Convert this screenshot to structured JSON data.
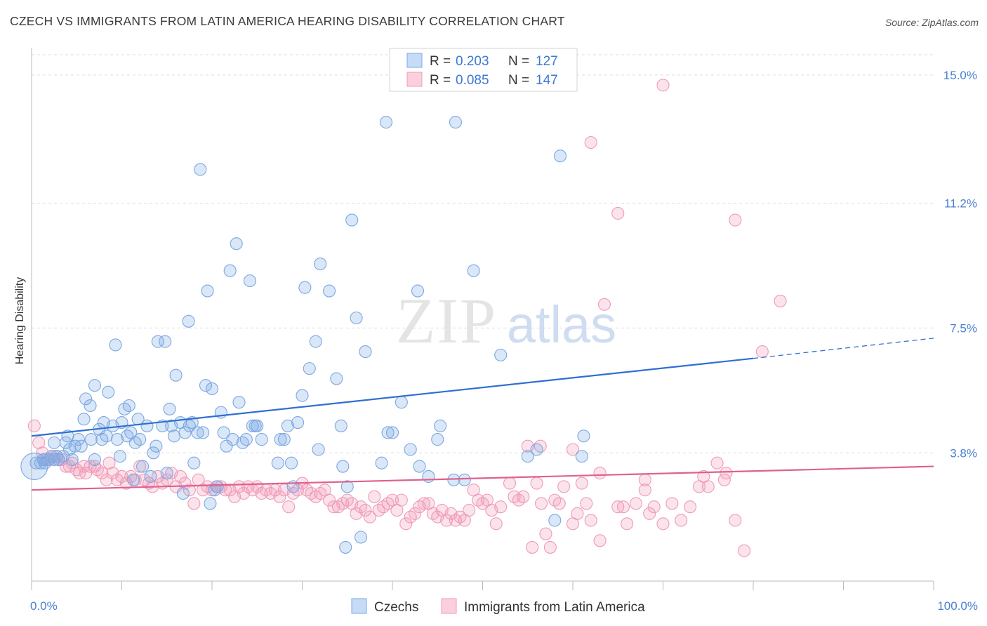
{
  "title": "CZECH VS IMMIGRANTS FROM LATIN AMERICA HEARING DISABILITY CORRELATION CHART",
  "source": "Source: ZipAtlas.com",
  "watermark": {
    "part1": "ZIP",
    "part2": "atlas"
  },
  "colors": {
    "blue": "#7aa8e4",
    "blue_line": "#2f6fd1",
    "pink": "#f09ab8",
    "pink_line": "#e0608e",
    "axis_text": "#4a7fd1"
  },
  "legend_top": [
    {
      "r_label": "R =",
      "r_value": "0.203",
      "n_label": "N =",
      "n_value": "127",
      "color": "blue"
    },
    {
      "r_label": "R =",
      "r_value": "0.085",
      "n_label": "N =",
      "n_value": "147",
      "color": "pink"
    }
  ],
  "legend_bottom": [
    {
      "label": "Czechs",
      "color": "blue"
    },
    {
      "label": "Immigrants from Latin America",
      "color": "pink"
    }
  ],
  "chart_data": {
    "type": "scatter",
    "ylabel": "Hearing Disability",
    "xlim": [
      0,
      100
    ],
    "ylim": [
      0,
      15.6
    ],
    "y_ticks": [
      3.8,
      7.5,
      11.2,
      15.0
    ],
    "y_tick_labels": [
      "3.8%",
      "7.5%",
      "11.2%",
      "15.0%"
    ],
    "x_tick_labels": [
      "0.0%",
      "100.0%"
    ],
    "grid": true,
    "series": [
      {
        "name": "Czechs",
        "color": "blue",
        "trend": {
          "x0": 0,
          "y0": 4.3,
          "x1": 80,
          "y1": 6.6,
          "dash_to_x": 100,
          "dash_to_y": 7.2
        },
        "points": [
          [
            0.5,
            3.5
          ],
          [
            1.0,
            3.5
          ],
          [
            1.3,
            3.6
          ],
          [
            1.5,
            3.5
          ],
          [
            1.8,
            3.6
          ],
          [
            2.2,
            3.7
          ],
          [
            2.5,
            3.6
          ],
          [
            2.8,
            3.7
          ],
          [
            3.0,
            3.6
          ],
          [
            2.5,
            4.1
          ],
          [
            3.5,
            3.7
          ],
          [
            3.8,
            4.1
          ],
          [
            4.0,
            4.3
          ],
          [
            4.2,
            3.9
          ],
          [
            4.5,
            3.6
          ],
          [
            4.8,
            4.0
          ],
          [
            5.2,
            4.2
          ],
          [
            5.5,
            4.0
          ],
          [
            5.8,
            4.8
          ],
          [
            6.0,
            5.4
          ],
          [
            6.5,
            5.2
          ],
          [
            6.6,
            4.2
          ],
          [
            7.0,
            3.6
          ],
          [
            7.0,
            5.8
          ],
          [
            7.5,
            4.5
          ],
          [
            7.8,
            4.2
          ],
          [
            8.0,
            4.7
          ],
          [
            8.3,
            4.3
          ],
          [
            8.5,
            5.6
          ],
          [
            9.0,
            4.6
          ],
          [
            9.3,
            7.0
          ],
          [
            9.5,
            4.2
          ],
          [
            9.8,
            3.7
          ],
          [
            10.0,
            4.7
          ],
          [
            10.3,
            5.1
          ],
          [
            10.6,
            4.3
          ],
          [
            10.8,
            5.2
          ],
          [
            11.0,
            4.4
          ],
          [
            11.3,
            3.0
          ],
          [
            11.5,
            4.1
          ],
          [
            11.8,
            4.8
          ],
          [
            12.0,
            4.2
          ],
          [
            12.3,
            3.4
          ],
          [
            12.8,
            4.6
          ],
          [
            13.2,
            3.1
          ],
          [
            13.5,
            3.8
          ],
          [
            13.8,
            4.0
          ],
          [
            14.0,
            7.1
          ],
          [
            14.5,
            4.6
          ],
          [
            14.8,
            7.1
          ],
          [
            15.0,
            3.2
          ],
          [
            15.3,
            5.1
          ],
          [
            15.5,
            4.6
          ],
          [
            15.8,
            4.3
          ],
          [
            16.0,
            6.1
          ],
          [
            16.5,
            4.7
          ],
          [
            16.8,
            2.6
          ],
          [
            17.0,
            4.4
          ],
          [
            17.4,
            7.7
          ],
          [
            17.5,
            4.6
          ],
          [
            17.8,
            4.7
          ],
          [
            18.0,
            3.5
          ],
          [
            18.4,
            4.4
          ],
          [
            18.7,
            12.2
          ],
          [
            19.0,
            4.4
          ],
          [
            19.3,
            5.8
          ],
          [
            19.5,
            8.6
          ],
          [
            19.8,
            2.3
          ],
          [
            20.0,
            5.7
          ],
          [
            20.3,
            2.7
          ],
          [
            20.6,
            2.8
          ],
          [
            21.0,
            5.0
          ],
          [
            21.3,
            4.4
          ],
          [
            21.6,
            4.0
          ],
          [
            22.0,
            9.2
          ],
          [
            22.3,
            4.2
          ],
          [
            22.7,
            10.0
          ],
          [
            23.0,
            5.3
          ],
          [
            23.4,
            4.1
          ],
          [
            23.8,
            4.2
          ],
          [
            24.2,
            8.9
          ],
          [
            24.5,
            4.6
          ],
          [
            24.8,
            4.6
          ],
          [
            25.0,
            4.6
          ],
          [
            25.5,
            4.2
          ],
          [
            27.3,
            3.5
          ],
          [
            27.6,
            4.2
          ],
          [
            28.0,
            4.2
          ],
          [
            28.4,
            4.6
          ],
          [
            28.8,
            3.5
          ],
          [
            29.0,
            2.8
          ],
          [
            29.5,
            4.7
          ],
          [
            30.0,
            5.5
          ],
          [
            30.3,
            8.7
          ],
          [
            30.8,
            6.3
          ],
          [
            31.5,
            7.1
          ],
          [
            31.8,
            3.9
          ],
          [
            32.0,
            9.4
          ],
          [
            33.0,
            8.6
          ],
          [
            33.8,
            6.0
          ],
          [
            34.3,
            4.6
          ],
          [
            34.5,
            3.4
          ],
          [
            34.8,
            1.0
          ],
          [
            35.0,
            2.8
          ],
          [
            35.5,
            10.7
          ],
          [
            36.0,
            7.8
          ],
          [
            36.5,
            1.3
          ],
          [
            37.0,
            6.8
          ],
          [
            38.8,
            3.5
          ],
          [
            39.3,
            13.6
          ],
          [
            39.5,
            4.4
          ],
          [
            40.0,
            4.4
          ],
          [
            41.0,
            5.3
          ],
          [
            42.0,
            3.9
          ],
          [
            42.8,
            8.6
          ],
          [
            43.0,
            3.4
          ],
          [
            44.0,
            3.1
          ],
          [
            45.0,
            4.2
          ],
          [
            45.3,
            4.6
          ],
          [
            46.8,
            3.0
          ],
          [
            47.0,
            13.6
          ],
          [
            48.0,
            3.0
          ],
          [
            49.0,
            9.2
          ],
          [
            52.0,
            6.7
          ],
          [
            55.0,
            3.7
          ],
          [
            56.0,
            3.9
          ],
          [
            58.0,
            1.8
          ],
          [
            58.6,
            12.6
          ],
          [
            61.0,
            3.7
          ],
          [
            61.2,
            4.3
          ]
        ],
        "big_point": [
          0.3,
          3.4
        ]
      },
      {
        "name": "Immigrants from Latin America",
        "color": "pink",
        "trend": {
          "x0": 0,
          "y0": 2.7,
          "x1": 100,
          "y1": 3.4
        },
        "points": [
          [
            0.3,
            4.6
          ],
          [
            0.8,
            4.1
          ],
          [
            1.2,
            3.8
          ],
          [
            1.5,
            3.6
          ],
          [
            2.0,
            3.6
          ],
          [
            2.5,
            3.7
          ],
          [
            3.0,
            3.6
          ],
          [
            3.3,
            3.6
          ],
          [
            3.8,
            3.4
          ],
          [
            4.2,
            3.4
          ],
          [
            4.5,
            3.5
          ],
          [
            5.0,
            3.3
          ],
          [
            5.3,
            3.2
          ],
          [
            5.8,
            3.4
          ],
          [
            6.0,
            3.2
          ],
          [
            6.5,
            3.4
          ],
          [
            7.0,
            3.4
          ],
          [
            7.3,
            3.3
          ],
          [
            7.8,
            3.2
          ],
          [
            8.3,
            3.0
          ],
          [
            8.6,
            3.5
          ],
          [
            9.0,
            3.2
          ],
          [
            9.5,
            3.0
          ],
          [
            10.0,
            3.1
          ],
          [
            10.5,
            2.9
          ],
          [
            11.0,
            3.1
          ],
          [
            11.5,
            3.0
          ],
          [
            12.0,
            3.4
          ],
          [
            12.5,
            3.0
          ],
          [
            13.0,
            2.9
          ],
          [
            13.4,
            2.8
          ],
          [
            14.0,
            3.1
          ],
          [
            14.5,
            2.9
          ],
          [
            15.0,
            3.0
          ],
          [
            15.5,
            3.2
          ],
          [
            16.0,
            2.8
          ],
          [
            16.5,
            3.1
          ],
          [
            17.0,
            2.9
          ],
          [
            17.5,
            2.7
          ],
          [
            18.0,
            2.3
          ],
          [
            18.5,
            3.0
          ],
          [
            19.0,
            2.7
          ],
          [
            19.5,
            2.8
          ],
          [
            20.0,
            2.7
          ],
          [
            20.5,
            2.8
          ],
          [
            21.0,
            2.8
          ],
          [
            21.5,
            2.7
          ],
          [
            22.0,
            2.7
          ],
          [
            22.5,
            2.5
          ],
          [
            23.0,
            2.8
          ],
          [
            23.5,
            2.6
          ],
          [
            24.0,
            2.8
          ],
          [
            24.5,
            2.7
          ],
          [
            25.0,
            2.8
          ],
          [
            25.5,
            2.6
          ],
          [
            26.0,
            2.7
          ],
          [
            26.5,
            2.6
          ],
          [
            27.0,
            2.7
          ],
          [
            27.5,
            2.5
          ],
          [
            28.0,
            2.7
          ],
          [
            28.5,
            2.2
          ],
          [
            29.0,
            2.6
          ],
          [
            29.5,
            2.7
          ],
          [
            30.0,
            2.9
          ],
          [
            30.5,
            2.7
          ],
          [
            31.0,
            2.6
          ],
          [
            31.5,
            2.5
          ],
          [
            32.0,
            2.6
          ],
          [
            32.5,
            2.7
          ],
          [
            33.0,
            2.4
          ],
          [
            33.5,
            2.2
          ],
          [
            34.0,
            2.2
          ],
          [
            34.5,
            2.3
          ],
          [
            35.0,
            2.4
          ],
          [
            35.5,
            2.3
          ],
          [
            36.0,
            2.0
          ],
          [
            36.5,
            2.2
          ],
          [
            37.0,
            2.1
          ],
          [
            37.5,
            1.9
          ],
          [
            38.0,
            2.5
          ],
          [
            38.5,
            2.1
          ],
          [
            39.0,
            2.2
          ],
          [
            39.5,
            2.3
          ],
          [
            40.0,
            2.4
          ],
          [
            40.5,
            2.1
          ],
          [
            41.0,
            2.4
          ],
          [
            41.5,
            1.7
          ],
          [
            42.0,
            1.9
          ],
          [
            42.5,
            2.0
          ],
          [
            43.0,
            2.2
          ],
          [
            43.5,
            2.3
          ],
          [
            44.0,
            2.3
          ],
          [
            44.5,
            2.0
          ],
          [
            45.0,
            1.9
          ],
          [
            45.5,
            2.1
          ],
          [
            46.0,
            1.8
          ],
          [
            46.5,
            2.0
          ],
          [
            47.0,
            1.8
          ],
          [
            47.5,
            1.9
          ],
          [
            48.0,
            1.8
          ],
          [
            48.5,
            2.1
          ],
          [
            49.0,
            2.7
          ],
          [
            49.5,
            2.4
          ],
          [
            50.0,
            2.3
          ],
          [
            50.5,
            2.4
          ],
          [
            51.0,
            2.1
          ],
          [
            51.5,
            1.7
          ],
          [
            52.0,
            2.2
          ],
          [
            53.0,
            2.9
          ],
          [
            53.5,
            2.5
          ],
          [
            54.0,
            2.4
          ],
          [
            54.5,
            2.5
          ],
          [
            55.0,
            4.0
          ],
          [
            55.5,
            1.0
          ],
          [
            56.0,
            2.9
          ],
          [
            56.5,
            2.3
          ],
          [
            57.0,
            1.4
          ],
          [
            57.5,
            1.0
          ],
          [
            58.0,
            2.4
          ],
          [
            58.5,
            2.3
          ],
          [
            59.0,
            2.8
          ],
          [
            60.0,
            1.7
          ],
          [
            60.5,
            2.0
          ],
          [
            61.5,
            2.3
          ],
          [
            62.0,
            1.8
          ],
          [
            63.0,
            1.2
          ],
          [
            65.0,
            2.2
          ],
          [
            65.6,
            2.2
          ],
          [
            66.0,
            1.7
          ],
          [
            67.0,
            2.3
          ],
          [
            68.0,
            3.0
          ],
          [
            68.5,
            2.0
          ],
          [
            69.0,
            2.2
          ],
          [
            70.0,
            1.7
          ],
          [
            71.0,
            2.3
          ],
          [
            72.0,
            1.8
          ],
          [
            73.0,
            2.2
          ],
          [
            74.0,
            2.8
          ],
          [
            75.0,
            2.8
          ],
          [
            76.0,
            3.5
          ],
          [
            77.0,
            3.2
          ],
          [
            78.0,
            1.8
          ],
          [
            79.0,
            0.9
          ],
          [
            70.0,
            14.7
          ],
          [
            62.0,
            13.0
          ],
          [
            63.5,
            8.2
          ],
          [
            65.0,
            10.9
          ],
          [
            78.0,
            10.7
          ],
          [
            83.0,
            8.3
          ],
          [
            81.0,
            6.8
          ],
          [
            60.0,
            3.9
          ],
          [
            61.0,
            2.9
          ],
          [
            63.0,
            3.2
          ],
          [
            68.0,
            2.7
          ],
          [
            74.5,
            3.1
          ],
          [
            76.8,
            3.0
          ],
          [
            56.4,
            4.0
          ]
        ]
      }
    ]
  }
}
